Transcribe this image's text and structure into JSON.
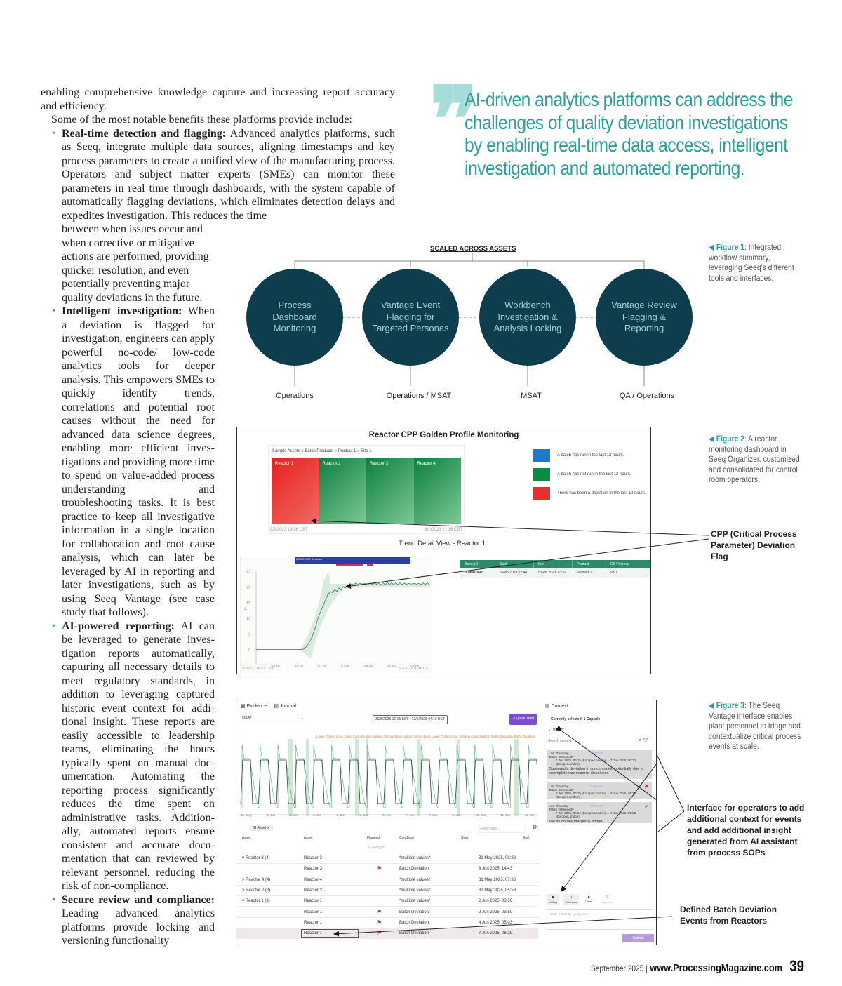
{
  "article": {
    "intro": "enabling comprehensive knowledge capture and increasing report accuracy and efficiency.",
    "lead": "Some of the most notable benefits these platforms provide include:",
    "bullets": [
      {
        "heading": "Real-time detection and flagging:",
        "text_wide": " Advanced analytics platforms, such as Seeq, integrate multiple data sources, aligning timestamps and key process parameters to create a unified view of the manu­facturing process. Operators and subject matter experts (SMEs) can monitor these parameters in real time through dashboards, with the system capable of automatically flagging deviations, which eliminates detection delays and expedites investigation. This reduces the time",
        "text_narrow": "between when issues occur and when corrective or mitigative actions are performed, provid­ing quicker resolution, and even potentially preventing major quality deviations in the future."
      },
      {
        "heading": "Intelligent investigation:",
        "text": " When a deviation is flagged for investigation, engineers can apply powerful no-code/ low-code analytics tools for deeper analysis. This empowers SMEs to quickly identify trends, correlations and potential root causes without the need for advanced data science degrees, enabling more efficient inves­tigations and providing more time to spend on value-added process understanding and troubleshooting tasks. It is best practice to keep all investigative information in a single location for collaboration and root cause analysis, which can later be leveraged by AI in reporting and later investigations, such as by using Seeq Vantage (see case study that follows)."
      },
      {
        "heading": "AI-powered reporting:",
        "text": " AI can be leveraged to generate inves­tigation reports automatically, capturing all necessary details to meet regulatory standards, in addition to leveraging captured historic event context for addi­tional insight. These reports are easily accessible to leadership teams, eliminating the hours typically spent on manual doc­umentation. Automating the reporting process significantly reduces the time spent on administrative tasks. Addition­ally, automated reports ensure consistent and accurate docu­mentation that can reviewed by relevant personnel, reducing the risk of non-compliance."
      },
      {
        "heading": "Secure review and compli­ance:",
        "text": " Leading advanced ana­lytics platforms provide locking and versioning functionality"
      }
    ]
  },
  "pull_quote": "AI-driven analytics platforms can address the challenges of quality deviation investigations by enabling real-time data access, intelligent investigation and automated reporting.",
  "figure1": {
    "caption_label": "Figure 1",
    "caption_text": ": Integrated workflow summary, leveraging Seeq's different tools and interfaces.",
    "title": "SCALED ACROSS ASSETS",
    "nodes": [
      "Process Dashboard Monitoring",
      "Vantage Event Flagging for Targeted Personas",
      "Workbench Investigation & Analysis Locking",
      "Vantage Review Flagging & Reporting"
    ],
    "roles": [
      "Operations",
      "Operations / MSAT",
      "MSAT",
      "QA / Operations"
    ],
    "node_color": "#0e3d4d"
  },
  "figure2": {
    "caption_label": "Figure 2",
    "caption_text": ": A reactor monitoring dashboard in Seeq Organizer, customized and consolidated for control room operators.",
    "title": "Reactor CPP Golden Profile Monitoring",
    "breadcrumb": "Sample Assets » Batch Products » Product 1 » Site 1",
    "tiles": [
      {
        "label": "Reactor 1",
        "status": "deviation"
      },
      {
        "label": "Reactor 2",
        "status": "not-run"
      },
      {
        "label": "Reactor 3",
        "status": "not-run"
      },
      {
        "label": "Reactor 4",
        "status": "not-run"
      }
    ],
    "tiles_start": "8/2/2023 13:36 CST",
    "tiles_end": "8/2/2023 21:36 CST",
    "legend": [
      {
        "color": "#1f78c8",
        "text": "A batch has run in the last 12 hours."
      },
      {
        "color": "#0f8a45",
        "text": "A batch has not run in the last 12 hours."
      },
      {
        "color": "#e8302f",
        "text": "There has been a deviation in the last 12 hours."
      }
    ],
    "trend_title": "Trend Detail View - Reactor 1",
    "capsule_label": "B14507692 Reaction",
    "y_ticks": [
      "25",
      "20",
      "15",
      "10",
      "5",
      "0"
    ],
    "y_unit": "L",
    "x_ticks": [
      "06:00",
      "08:00",
      "10:00",
      "12:00",
      "14:00",
      "16:00",
      "18:00",
      "20:00"
    ],
    "trend_start": "5/2/2023 04:18 CST",
    "trend_end": "5/2/2023 20:26 CST",
    "table_headers": [
      "Batch ID",
      "Start",
      "End",
      "Product",
      "DS Potency"
    ],
    "table_row": [
      "B14507692",
      "5 Feb 2023 07:44",
      "5 Feb 2023 17:10",
      "Product 1",
      "98.7"
    ],
    "annotation": "CPP (Critical Process Parameter) Deviation Flag"
  },
  "figure3": {
    "caption_label": "Figure 3",
    "caption_text": ": The Seeq Vantage interface enables plant personnel to triage and contextualize critical process events at scale.",
    "tabs": [
      "Evidence",
      "Journal"
    ],
    "asset_select": "MSAT",
    "date_range": "30/5/2025 16:16 BST - 12/6/2025 04:16 BST",
    "quicktrend": "QuickTrend",
    "series_legend": "Lower Control Limit, Upper Control Limit, Solution Concentration, Upper Control Limit, Lower Control Limit, Solution Concentration, Batch Deviation, Batch Deviation",
    "x_ticks": [
      "31. May",
      "1. Jun",
      "2. Jun",
      "3. Jun",
      "4. Jun",
      "5. Jun",
      "6. Jun",
      "7. Jun",
      "8. Jun",
      "9. Jun",
      "10. Jun",
      "11. Jun",
      "12. Jun"
    ],
    "group_chip": "Asset",
    "filter_placeholder": "Filter table...",
    "columns": [
      "Asset",
      "Asset",
      "Flagged",
      "Condition",
      "Start",
      "End"
    ],
    "flag_filter": "(1) Flagge",
    "rows": [
      {
        "group": "Reactor 3 (4)",
        "expand": "v",
        "asset": "Reactor 3",
        "flagged": false,
        "condition": "*multiple values*",
        "start": "31 May 2025, 08:28"
      },
      {
        "group": "",
        "expand": "",
        "asset": "Reactor 3",
        "flagged": true,
        "condition": "Batch Deviation",
        "start": "6 Jun 2025, 14:43"
      },
      {
        "group": "Reactor 4 (4)",
        "expand": ">",
        "asset": "Reactor 4",
        "flagged": false,
        "condition": "*multiple values*",
        "start": "31 May 2025, 07:36"
      },
      {
        "group": "Reactor 2 (3)",
        "expand": ">",
        "asset": "Reactor 2",
        "flagged": false,
        "condition": "*multiple values*",
        "start": "31 May 2025, 05:58"
      },
      {
        "group": "Reactor 1 (3)",
        "expand": "v",
        "asset": "Reactor 1",
        "flagged": false,
        "condition": "*multiple values*",
        "start": "2 Jun 2025, 03:50"
      },
      {
        "group": "",
        "expand": "",
        "asset": "Reactor 1",
        "flagged": true,
        "condition": "Batch Deviation",
        "start": "2 Jun 2025, 03:50"
      },
      {
        "group": "",
        "expand": "",
        "asset": "Reactor 1",
        "flagged": true,
        "condition": "Batch Deviation",
        "start": "4 Jun 2025, 05:03"
      },
      {
        "group": "",
        "expand": "",
        "asset": "Reactor 1",
        "flagged": true,
        "condition": "Batch Deviation",
        "start": "7 Jun 2025, 06:29"
      }
    ],
    "context_tab": "Context",
    "selected": "Currently selected: 1 Capsule",
    "history": "History",
    "search_context": "Search context",
    "cards": [
      {
        "when": "Last Thursday",
        "who": "Tatum O'Kennedy",
        "type": "Capsule",
        "range": "7 Jun 2025, 06:29 (Europe/London) → 7 Jun 2025, 06:32 (Europe/London)",
        "note": "Observed a deviation in concentration potentially due to incomplete raw material dissolution"
      },
      {
        "when": "Last Thursday",
        "who": "Tatum O'Kennedy",
        "type": "Capsule",
        "range": "7 Jun 2025, 06:29 (Europe/London) → 7 Jun 2025, 06:32 (Europe/London)",
        "note": ""
      },
      {
        "when": "Last Thursday",
        "who": "Tatum O'Kennedy",
        "type": "Capsule",
        "range": "7 Jun 2025, 06:29 (Europe/London) → 7 Jun 2025, 06:32 (Europe/London)",
        "note": "Too much raw mac|terial added"
      }
    ],
    "actions": [
      "Unflag",
      "Unreview",
      "Label",
      "Suppress"
    ],
    "note_placeholder": "Enter a note by typing here...",
    "submit": "Submit",
    "annotation_top": "Interface for operators to add additional context for events and add additional insight generated from AI assistant from process SOPs",
    "annotation_bottom": "Defined Batch Deviation Events from Reactors",
    "accent": "#7b4fc9"
  },
  "footer": {
    "date": "September 2025 |",
    "site": "www.ProcessingMagazine.com",
    "page": "39"
  }
}
